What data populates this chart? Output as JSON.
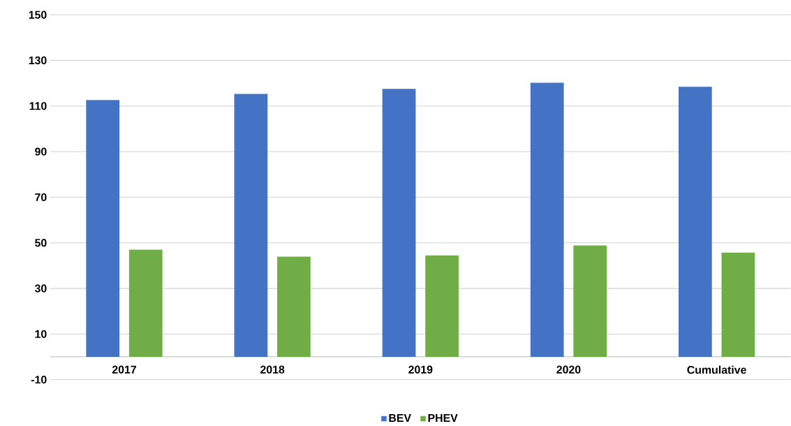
{
  "chart_data": {
    "type": "bar",
    "categories": [
      "2017",
      "2018",
      "2019",
      "2020",
      "Cumulative"
    ],
    "series": [
      {
        "name": "BEV",
        "color": "#4472c4",
        "values": [
          112.6,
          115.3,
          117.5,
          120.2,
          118.4
        ]
      },
      {
        "name": "PHEV",
        "color": "#70ad47",
        "values": [
          47.0,
          43.9,
          44.5,
          48.8,
          45.7
        ]
      }
    ],
    "ylim": [
      -10,
      150
    ],
    "yticks": [
      -10,
      10,
      30,
      50,
      70,
      90,
      110,
      130,
      150
    ],
    "grid": "y",
    "legend": "bottom"
  }
}
